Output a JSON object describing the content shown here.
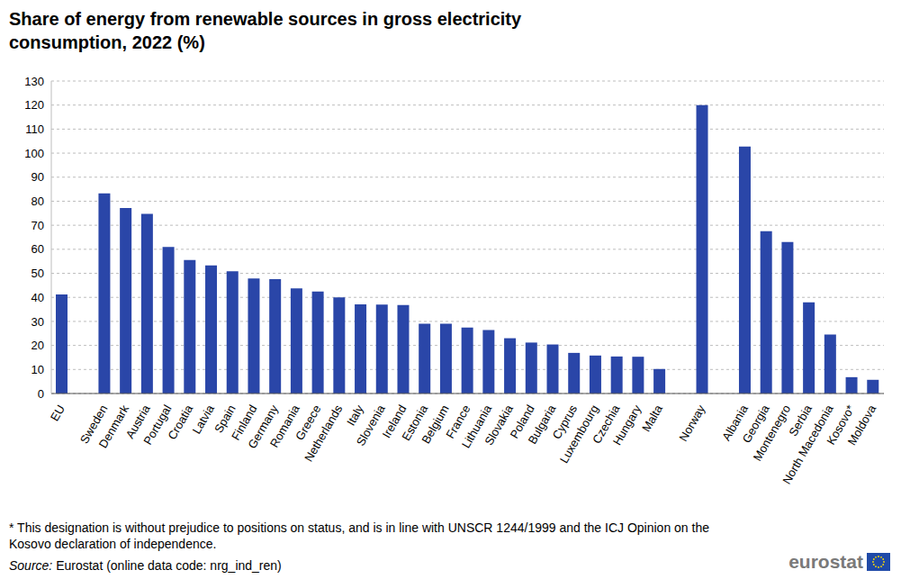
{
  "chart_data": {
    "type": "bar",
    "title": "Share of energy from renewable sources in gross electricity consumption, 2022 (%)",
    "categories": [
      "EU",
      null,
      "Sweden",
      "Denmark",
      "Austria",
      "Portugal",
      "Croatia",
      "Latvia",
      "Spain",
      "Finland",
      "Germany",
      "Romania",
      "Greece",
      "Netherlands",
      "Italy",
      "Slovenia",
      "Ireland",
      "Estonia",
      "Belgium",
      "France",
      "Lithuania",
      "Slovakia",
      "Poland",
      "Bulgaria",
      "Cyprus",
      "Luxembourg",
      "Czechia",
      "Hungary",
      "Malta",
      null,
      "Norway",
      null,
      "Albania",
      "Georgia",
      "Montenegro",
      "Serbia",
      "North Macedonia",
      "Kosovo*",
      "Moldova"
    ],
    "values": [
      41.2,
      null,
      83.3,
      77.2,
      74.7,
      61.0,
      55.5,
      53.3,
      50.9,
      47.9,
      47.6,
      43.7,
      42.4,
      40.0,
      37.1,
      37.0,
      36.8,
      29.0,
      29.0,
      27.4,
      26.4,
      23.0,
      21.2,
      20.4,
      16.9,
      15.8,
      15.4,
      15.3,
      10.2,
      null,
      120.0,
      null,
      102.7,
      67.5,
      63.0,
      37.9,
      24.5,
      6.8,
      5.7
    ],
    "color": "#2a46a8",
    "ylim": [
      0,
      130
    ],
    "yticks": [
      0,
      10,
      20,
      30,
      40,
      50,
      60,
      70,
      80,
      90,
      100,
      110,
      120,
      130
    ],
    "grid": true,
    "footnote": "* This designation is without prejudice to positions on status, and is in line with UNSCR 1244/1999 and the ICJ Opinion on the Kosovo declaration of independence.",
    "source_label": "Source:",
    "source": "Eurostat (online data code: nrg_ind_ren)",
    "logo": "eurostat"
  }
}
